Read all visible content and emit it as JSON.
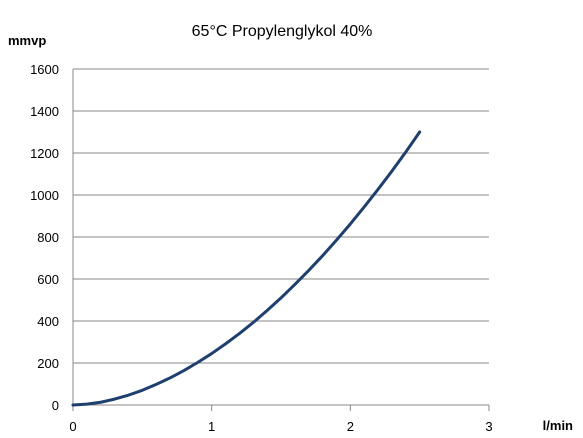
{
  "chart_data": {
    "type": "line",
    "title": "65°C Propylenglykol 40%",
    "xlabel": "l/min",
    "ylabel": "mmvp",
    "xlim": [
      0,
      3
    ],
    "ylim": [
      0,
      1600
    ],
    "xticks": [
      0,
      1,
      2,
      3
    ],
    "yticks": [
      0,
      200,
      400,
      600,
      800,
      1000,
      1200,
      1400,
      1600
    ],
    "grid": "horizontal",
    "legend": "none",
    "series": [
      {
        "color": "#1f3f6e",
        "x": [
          0,
          0.1,
          0.2,
          0.3,
          0.4,
          0.5,
          0.6,
          0.7,
          0.8,
          0.9,
          1.0,
          1.1,
          1.2,
          1.3,
          1.4,
          1.5,
          1.6,
          1.7,
          1.8,
          1.9,
          2.0,
          2.1,
          2.2,
          2.3,
          2.4,
          2.5
        ],
        "y": [
          0,
          4,
          13,
          28,
          47,
          70,
          98,
          129,
          164,
          203,
          245,
          291,
          340,
          393,
          450,
          510,
          574,
          641,
          711,
          785,
          862,
          943,
          1027,
          1114,
          1205,
          1300
        ]
      }
    ]
  }
}
